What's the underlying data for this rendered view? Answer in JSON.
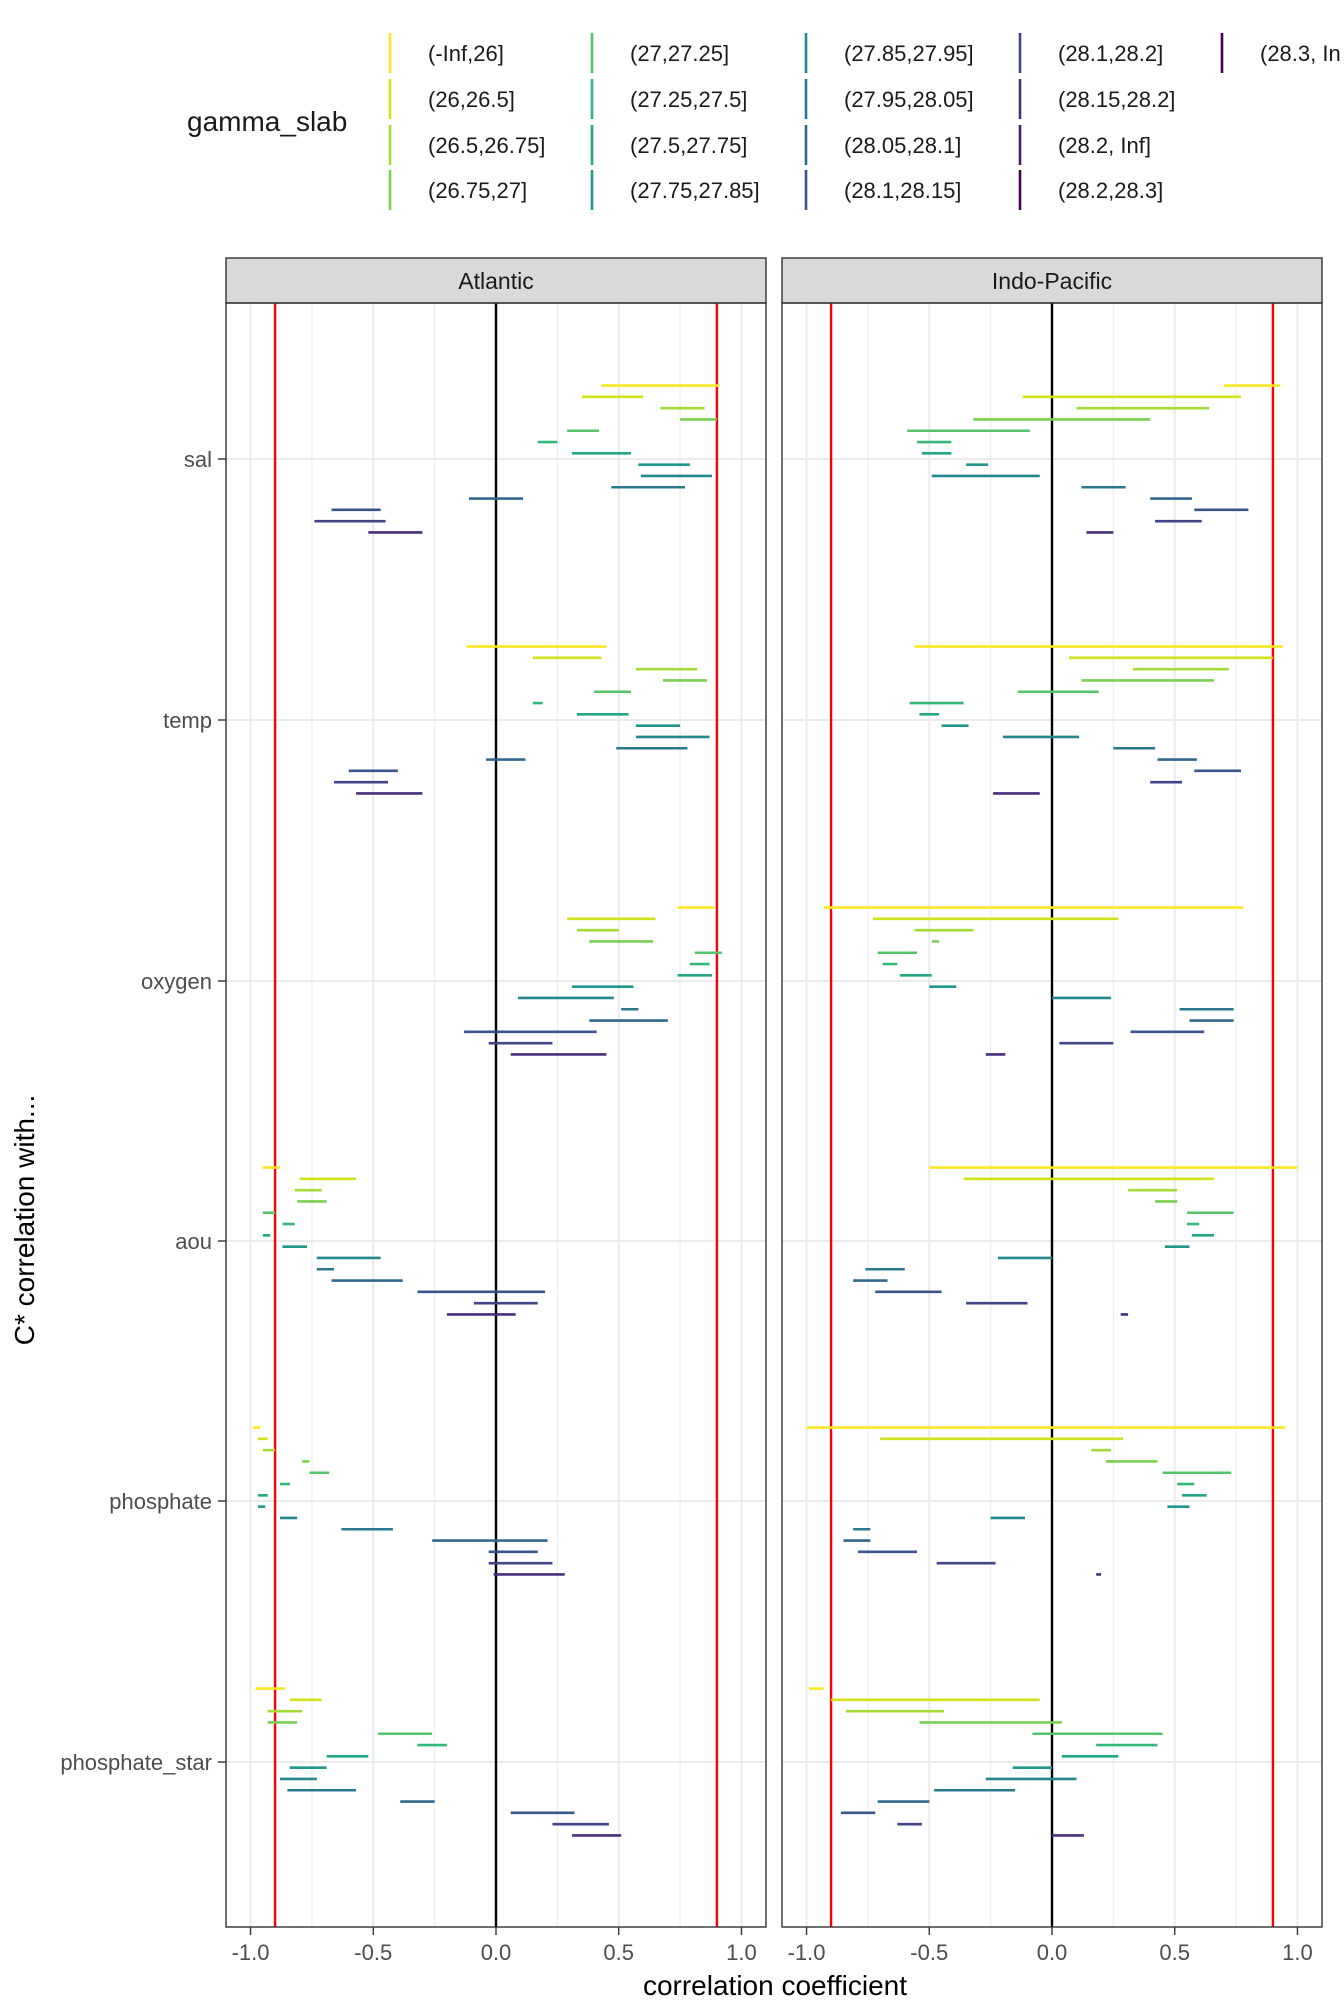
{
  "chart_data": {
    "type": "interval",
    "title": "",
    "xlabel": "correlation coefficient",
    "ylabel": "C* correlation with...",
    "xlim": [
      -1.1,
      1.1
    ],
    "x_ticks": [
      -1.0,
      -0.5,
      0.0,
      0.5,
      1.0
    ],
    "x_tick_labels": [
      "-1.0",
      "-0.5",
      "0.0",
      "0.5",
      "1.0"
    ],
    "reference_lines": [
      {
        "x": -0.9,
        "color": "#ff0000"
      },
      {
        "x": 0.0,
        "color": "#000000"
      },
      {
        "x": 0.9,
        "color": "#ff0000"
      }
    ],
    "categories": [
      "sal",
      "temp",
      "oxygen",
      "aou",
      "phosphate",
      "phosphate_star"
    ],
    "legend": {
      "title": "gamma_slab",
      "position": "top",
      "items": [
        {
          "label": "(-Inf,26]",
          "color": "#fde725"
        },
        {
          "label": "(26,26.5]",
          "color": "#d2e21b"
        },
        {
          "label": "(26.5,26.75]",
          "color": "#a5db36"
        },
        {
          "label": "(26.75,27]",
          "color": "#7ad151"
        },
        {
          "label": "(27,27.25]",
          "color": "#54c568"
        },
        {
          "label": "(27.25,27.5]",
          "color": "#35b779"
        },
        {
          "label": "(27.5,27.75]",
          "color": "#22a884"
        },
        {
          "label": "(27.75,27.85]",
          "color": "#1f988b"
        },
        {
          "label": "(27.85,27.95]",
          "color": "#23888e"
        },
        {
          "label": "(27.95,28.05]",
          "color": "#2a788e"
        },
        {
          "label": "(28.05,28.1]",
          "color": "#31688e"
        },
        {
          "label": "(28.1,28.15]",
          "color": "#39568c"
        },
        {
          "label": "(28.1,28.2]",
          "color": "#414487"
        },
        {
          "label": "(28.15,28.2]",
          "color": "#472f7d"
        },
        {
          "label": "(28.2, Inf]",
          "color": "#481a6c"
        },
        {
          "label": "(28.2,28.3]",
          "color": "#440154"
        },
        {
          "label": "(28.3, In",
          "color": "#440154"
        }
      ]
    },
    "panels": [
      {
        "name": "Atlantic",
        "groups": [
          {
            "variable": "sal",
            "intervals": [
              [
                0.43,
                0.91
              ],
              [
                0.35,
                0.6
              ],
              [
                0.67,
                0.85
              ],
              [
                0.75,
                0.9
              ],
              [
                0.29,
                0.42
              ],
              [
                0.17,
                0.25
              ],
              [
                0.31,
                0.55
              ],
              [
                0.58,
                0.79
              ],
              [
                0.59,
                0.88
              ],
              [
                0.47,
                0.77
              ],
              [
                -0.11,
                0.11
              ],
              [
                -0.67,
                -0.47
              ],
              [
                -0.74,
                -0.45
              ],
              [
                -0.52,
                -0.3
              ]
            ]
          },
          {
            "variable": "temp",
            "intervals": [
              [
                -0.12,
                0.45
              ],
              [
                0.15,
                0.43
              ],
              [
                0.57,
                0.82
              ],
              [
                0.68,
                0.86
              ],
              [
                0.4,
                0.55
              ],
              [
                0.15,
                0.19
              ],
              [
                0.33,
                0.54
              ],
              [
                0.57,
                0.75
              ],
              [
                0.57,
                0.87
              ],
              [
                0.49,
                0.78
              ],
              [
                -0.04,
                0.12
              ],
              [
                -0.6,
                -0.4
              ],
              [
                -0.66,
                -0.44
              ],
              [
                -0.57,
                -0.3
              ]
            ]
          },
          {
            "variable": "oxygen",
            "intervals": [
              [
                0.74,
                0.89
              ],
              [
                0.29,
                0.65
              ],
              [
                0.33,
                0.5
              ],
              [
                0.38,
                0.64
              ],
              [
                0.81,
                0.92
              ],
              [
                0.79,
                0.87
              ],
              [
                0.74,
                0.88
              ],
              [
                0.31,
                0.56
              ],
              [
                0.09,
                0.48
              ],
              [
                0.51,
                0.58
              ],
              [
                0.38,
                0.7
              ],
              [
                -0.13,
                0.41
              ],
              [
                -0.03,
                0.23
              ],
              [
                0.06,
                0.45
              ]
            ]
          },
          {
            "variable": "aou",
            "intervals": [
              [
                -0.95,
                -0.88
              ],
              [
                -0.8,
                -0.57
              ],
              [
                -0.82,
                -0.71
              ],
              [
                -0.81,
                -0.69
              ],
              [
                -0.95,
                -0.9
              ],
              [
                -0.87,
                -0.82
              ],
              [
                -0.95,
                -0.92
              ],
              [
                -0.87,
                -0.77
              ],
              [
                -0.73,
                -0.47
              ],
              [
                -0.73,
                -0.66
              ],
              [
                -0.67,
                -0.38
              ],
              [
                -0.32,
                0.2
              ],
              [
                -0.09,
                0.17
              ],
              [
                -0.2,
                0.08
              ]
            ]
          },
          {
            "variable": "phosphate",
            "intervals": [
              [
                -0.99,
                -0.96
              ],
              [
                -0.97,
                -0.93
              ],
              [
                -0.95,
                -0.9
              ],
              [
                -0.79,
                -0.76
              ],
              [
                -0.76,
                -0.68
              ],
              [
                -0.88,
                -0.84
              ],
              [
                -0.97,
                -0.93
              ],
              [
                -0.97,
                -0.94
              ],
              [
                -0.88,
                -0.81
              ],
              [
                -0.63,
                -0.42
              ],
              [
                -0.26,
                0.21
              ],
              [
                -0.03,
                0.17
              ],
              [
                -0.03,
                0.23
              ],
              [
                -0.01,
                0.28
              ]
            ]
          },
          {
            "variable": "phosphate_star",
            "intervals": [
              [
                -0.98,
                -0.86
              ],
              [
                -0.84,
                -0.71
              ],
              [
                -0.93,
                -0.79
              ],
              [
                -0.93,
                -0.81
              ],
              [
                -0.48,
                -0.26
              ],
              [
                -0.32,
                -0.2
              ],
              [
                -0.69,
                -0.52
              ],
              [
                -0.84,
                -0.69
              ],
              [
                -0.88,
                -0.73
              ],
              [
                -0.85,
                -0.57
              ],
              [
                -0.39,
                -0.25
              ],
              [
                0.06,
                0.32
              ],
              [
                0.23,
                0.46
              ],
              [
                0.31,
                0.51
              ]
            ]
          }
        ]
      },
      {
        "name": "Indo-Pacific",
        "groups": [
          {
            "variable": "sal",
            "intervals": [
              [
                0.7,
                0.93
              ],
              [
                -0.12,
                0.77
              ],
              [
                0.1,
                0.64
              ],
              [
                -0.32,
                0.4
              ],
              [
                -0.59,
                -0.09
              ],
              [
                -0.55,
                -0.41
              ],
              [
                -0.53,
                -0.41
              ],
              [
                -0.35,
                -0.26
              ],
              [
                -0.49,
                -0.05
              ],
              [
                0.12,
                0.3
              ],
              [
                0.4,
                0.57
              ],
              [
                0.58,
                0.8
              ],
              [
                0.42,
                0.61
              ],
              [
                0.14,
                0.25
              ]
            ]
          },
          {
            "variable": "temp",
            "intervals": [
              [
                -0.56,
                0.94
              ],
              [
                0.07,
                0.9
              ],
              [
                0.33,
                0.72
              ],
              [
                0.12,
                0.66
              ],
              [
                -0.14,
                0.19
              ],
              [
                -0.58,
                -0.36
              ],
              [
                -0.54,
                -0.46
              ],
              [
                -0.45,
                -0.34
              ],
              [
                -0.2,
                0.11
              ],
              [
                0.25,
                0.42
              ],
              [
                0.43,
                0.59
              ],
              [
                0.58,
                0.77
              ],
              [
                0.4,
                0.53
              ],
              [
                -0.24,
                -0.05
              ]
            ]
          },
          {
            "variable": "oxygen",
            "intervals": [
              [
                -0.93,
                0.78
              ],
              [
                -0.73,
                0.27
              ],
              [
                -0.56,
                -0.32
              ],
              [
                -0.49,
                -0.46
              ],
              [
                -0.71,
                -0.55
              ],
              [
                -0.69,
                -0.63
              ],
              [
                -0.62,
                -0.49
              ],
              [
                -0.5,
                -0.39
              ],
              [
                0.0,
                0.24
              ],
              [
                0.52,
                0.74
              ],
              [
                0.56,
                0.74
              ],
              [
                0.32,
                0.62
              ],
              [
                0.03,
                0.25
              ],
              [
                -0.27,
                -0.19
              ]
            ]
          },
          {
            "variable": "aou",
            "intervals": [
              [
                -0.5,
                1.0
              ],
              [
                -0.36,
                0.66
              ],
              [
                0.31,
                0.51
              ],
              [
                0.42,
                0.51
              ],
              [
                0.55,
                0.74
              ],
              [
                0.55,
                0.6
              ],
              [
                0.57,
                0.66
              ],
              [
                0.46,
                0.56
              ],
              [
                -0.22,
                0.0
              ],
              [
                -0.76,
                -0.6
              ],
              [
                -0.81,
                -0.67
              ],
              [
                -0.72,
                -0.45
              ],
              [
                -0.35,
                -0.1
              ],
              [
                0.28,
                0.31
              ]
            ]
          },
          {
            "variable": "phosphate",
            "intervals": [
              [
                -1.0,
                0.95
              ],
              [
                -0.7,
                0.29
              ],
              [
                0.16,
                0.24
              ],
              [
                0.22,
                0.43
              ],
              [
                0.45,
                0.73
              ],
              [
                0.51,
                0.58
              ],
              [
                0.53,
                0.63
              ],
              [
                0.47,
                0.56
              ],
              [
                -0.25,
                -0.11
              ],
              [
                -0.81,
                -0.74
              ],
              [
                -0.85,
                -0.74
              ],
              [
                -0.79,
                -0.55
              ],
              [
                -0.47,
                -0.23
              ],
              [
                0.18,
                0.2
              ]
            ]
          },
          {
            "variable": "phosphate_star",
            "intervals": [
              [
                -0.99,
                -0.93
              ],
              [
                -0.9,
                -0.05
              ],
              [
                -0.84,
                -0.44
              ],
              [
                -0.54,
                0.04
              ],
              [
                -0.08,
                0.45
              ],
              [
                0.18,
                0.43
              ],
              [
                0.04,
                0.27
              ],
              [
                -0.16,
                0.0
              ],
              [
                -0.27,
                0.1
              ],
              [
                -0.48,
                -0.15
              ],
              [
                -0.71,
                -0.5
              ],
              [
                -0.86,
                -0.72
              ],
              [
                -0.63,
                -0.53
              ],
              [
                0.0,
                0.13
              ]
            ]
          }
        ]
      }
    ]
  }
}
